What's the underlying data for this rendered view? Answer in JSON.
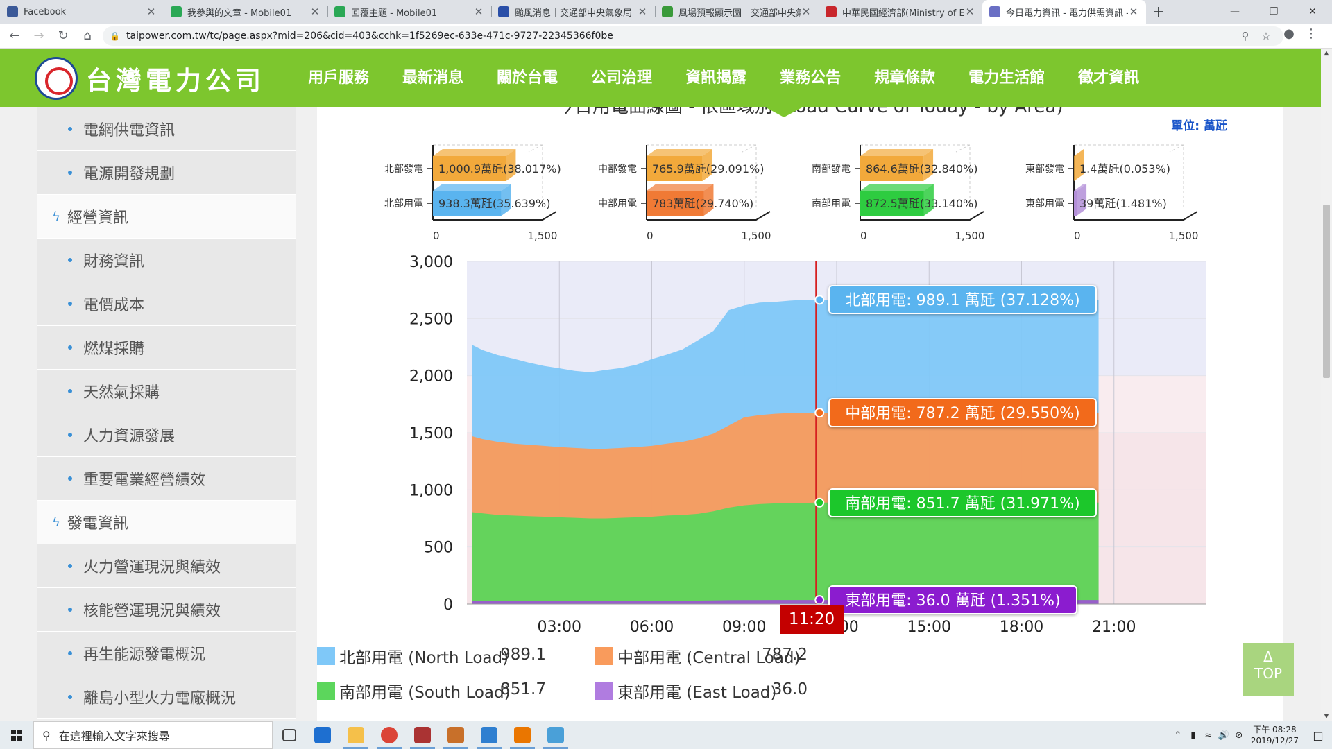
{
  "browser": {
    "tabs": [
      {
        "title": "Facebook",
        "color": "#3b5998",
        "active": false
      },
      {
        "title": "我參與的文章 - Mobile01",
        "color": "#2aa855",
        "active": false
      },
      {
        "title": "回覆主題 - Mobile01",
        "color": "#2aa855",
        "active": false
      },
      {
        "title": "颱風消息｜交通部中央氣象局",
        "color": "#2a4fa8",
        "active": false
      },
      {
        "title": "風場預報顯示圖｜交通部中央氣象",
        "color": "#3a9a3a",
        "active": false
      },
      {
        "title": "中華民國經濟部(Ministry of Eco",
        "color": "#c8262c",
        "active": false
      },
      {
        "title": "今日電力資訊 - 電力供需資訊 - 台",
        "color": "#6a6fc4",
        "active": true
      }
    ],
    "new_tab": "+",
    "url": "taipower.com.tw/tc/page.aspx?mid=206&cid=403&cchk=1f5269ec-633e-471c-9727-22345366f0be"
  },
  "site": {
    "logo_text": "台灣電力公司",
    "nav": [
      "用戶服務",
      "最新消息",
      "關於台電",
      "公司治理",
      "資訊揭露",
      "業務公告",
      "規章條款",
      "電力生活館",
      "徵才資訊"
    ]
  },
  "sidebar": {
    "items": [
      {
        "label": "電網供電資訊",
        "type": "sub"
      },
      {
        "label": "電源開發規劃",
        "type": "sub"
      },
      {
        "label": "經營資訊",
        "type": "cat"
      },
      {
        "label": "財務資訊",
        "type": "sub"
      },
      {
        "label": "電價成本",
        "type": "sub"
      },
      {
        "label": "燃煤採購",
        "type": "sub"
      },
      {
        "label": "天然氣採購",
        "type": "sub"
      },
      {
        "label": "人力資源發展",
        "type": "sub"
      },
      {
        "label": "重要電業經營績效",
        "type": "sub"
      },
      {
        "label": "發電資訊",
        "type": "cat"
      },
      {
        "label": "火力營運現況與績效",
        "type": "sub"
      },
      {
        "label": "核能營運現況與績效",
        "type": "sub"
      },
      {
        "label": "再生能源發電概況",
        "type": "sub"
      },
      {
        "label": "離島小型火力電廠概況",
        "type": "sub"
      }
    ]
  },
  "content": {
    "cut_title": "今日用電曲線圖 - 依區域別 (Load Curve of Today - by Area)",
    "unit": "單位: 萬瓩",
    "top_button": {
      "arrow": "Δ",
      "label": "TOP"
    }
  },
  "chart_data": [
    {
      "type": "bar",
      "region": "北部",
      "categories": [
        "北部發電",
        "北部用電"
      ],
      "values": [
        1000.9,
        938.3
      ],
      "data_labels": [
        "1,000.9萬瓩(38.017%)",
        "938.3萬瓩(35.639%)"
      ],
      "colors": [
        "#f2a93b",
        "#5ab4ef"
      ],
      "xlim": [
        0,
        1500
      ],
      "ticks": [
        "0",
        "1,500"
      ]
    },
    {
      "type": "bar",
      "region": "中部",
      "categories": [
        "中部發電",
        "中部用電"
      ],
      "values": [
        765.9,
        783
      ],
      "data_labels": [
        "765.9萬瓩(29.091%)",
        "783萬瓩(29.740%)"
      ],
      "colors": [
        "#f2a93b",
        "#f07a35"
      ],
      "xlim": [
        0,
        1500
      ],
      "ticks": [
        "0",
        "1,500"
      ]
    },
    {
      "type": "bar",
      "region": "南部",
      "categories": [
        "南部發電",
        "南部用電"
      ],
      "values": [
        864.6,
        872.5
      ],
      "data_labels": [
        "864.6萬瓩(32.840%)",
        "872.5萬瓩(33.140%)"
      ],
      "colors": [
        "#f2a93b",
        "#2ecc40"
      ],
      "xlim": [
        0,
        1500
      ],
      "ticks": [
        "0",
        "1,500"
      ]
    },
    {
      "type": "bar",
      "region": "東部",
      "categories": [
        "東部發電",
        "東部用電"
      ],
      "values": [
        1.4,
        39
      ],
      "data_labels": [
        "1.4萬瓩(0.053%)",
        "39萬瓩(1.481%)"
      ],
      "colors": [
        "#f2a93b",
        "#b38fd8"
      ],
      "xlim": [
        0,
        1500
      ],
      "ticks": [
        "0",
        "1,500"
      ]
    },
    {
      "type": "area",
      "stacked": true,
      "x_hours": [
        0.17,
        0.5,
        1,
        1.5,
        2,
        2.5,
        3,
        3.5,
        4,
        4.5,
        5,
        5.5,
        6,
        6.5,
        7,
        7.5,
        8,
        8.5,
        9,
        9.5,
        10,
        10.5,
        11,
        11.33
      ],
      "xlim": [
        0,
        24
      ],
      "ylim": [
        0,
        3000
      ],
      "yticks": [
        "0",
        "500",
        "1,000",
        "1,500",
        "2,000",
        "2,500",
        "3,000"
      ],
      "yticks_values": [
        0,
        500,
        1000,
        1500,
        2000,
        2500,
        3000
      ],
      "xticks": [
        "03:00",
        "06:00",
        "09:00",
        "12:00",
        "15:00",
        "18:00",
        "21:00"
      ],
      "xticks_values": [
        3,
        6,
        9,
        12,
        15,
        18,
        21
      ],
      "series": [
        {
          "name": "東部用電 (East Load)",
          "color": "#9b59d0",
          "values": [
            30,
            30,
            30,
            30,
            30,
            30,
            30,
            30,
            30,
            30,
            30,
            30,
            30,
            30,
            30,
            30,
            32,
            34,
            35,
            35,
            36,
            36,
            36,
            36
          ]
        },
        {
          "name": "南部用電 (South Load)",
          "color": "#5cd65c",
          "values": [
            775,
            765,
            750,
            745,
            740,
            735,
            730,
            725,
            720,
            720,
            725,
            730,
            735,
            745,
            750,
            760,
            780,
            810,
            830,
            840,
            845,
            850,
            850,
            852
          ]
        },
        {
          "name": "中部用電 (Central Load)",
          "color": "#f99b5c",
          "values": [
            665,
            650,
            640,
            630,
            625,
            620,
            615,
            612,
            610,
            610,
            612,
            615,
            620,
            630,
            640,
            660,
            680,
            720,
            770,
            780,
            785,
            787,
            787,
            787
          ]
        },
        {
          "name": "北部用電 (North Load)",
          "color": "#7fc8f8",
          "values": [
            800,
            780,
            760,
            745,
            720,
            700,
            690,
            675,
            670,
            690,
            700,
            720,
            760,
            780,
            810,
            860,
            900,
            1010,
            980,
            985,
            980,
            985,
            990,
            989
          ]
        }
      ],
      "band_colors": [
        "#eef0fb",
        "#fde9e8"
      ],
      "cursor": {
        "time": "11:20",
        "x_hour": 11.33
      },
      "tooltips": [
        {
          "label": "北部用電: 989.1 萬瓩 (37.128%)",
          "color": "#5ab4ef",
          "value": 2664
        },
        {
          "label": "中部用電: 787.2 萬瓩 (29.550%)",
          "color": "#f26a1b",
          "value": 1675
        },
        {
          "label": "南部用電: 851.7 萬瓩 (31.971%)",
          "color": "#1cc72b",
          "value": 888
        },
        {
          "label": "東部用電: 36.0 萬瓩 (1.351%)",
          "color": "#8b1ccf",
          "value": 36
        }
      ],
      "legend": [
        {
          "label": "北部用電 (North Load)",
          "value": "989.1",
          "color": "#7fc8f8"
        },
        {
          "label": "中部用電 (Central Load)",
          "value": "787.2",
          "color": "#f99b5c"
        },
        {
          "label": "南部用電 (South Load)",
          "value": "851.7",
          "color": "#5cd65c"
        },
        {
          "label": "東部用電 (East Load)",
          "value": "36.0",
          "color": "#b07ce0"
        }
      ]
    }
  ],
  "taskbar": {
    "search_placeholder": "在這裡輸入文字來搜尋",
    "apps": [
      {
        "name": "task-view-icon",
        "color": "#444"
      },
      {
        "name": "edge-icon",
        "color": "#1e6fd0"
      },
      {
        "name": "file-explorer-icon",
        "color": "#f5c04a"
      },
      {
        "name": "chrome-icon",
        "color": "#db4437"
      },
      {
        "name": "app-icon-5",
        "color": "#a33"
      },
      {
        "name": "app-icon-6",
        "color": "#c8702a"
      },
      {
        "name": "app-icon-7",
        "color": "#2f7fd0"
      },
      {
        "name": "blender-icon",
        "color": "#ea7600"
      },
      {
        "name": "app-icon-9",
        "color": "#4aa0d8"
      }
    ],
    "clock_ampm": "下午 08:28",
    "date": "2019/12/27"
  }
}
